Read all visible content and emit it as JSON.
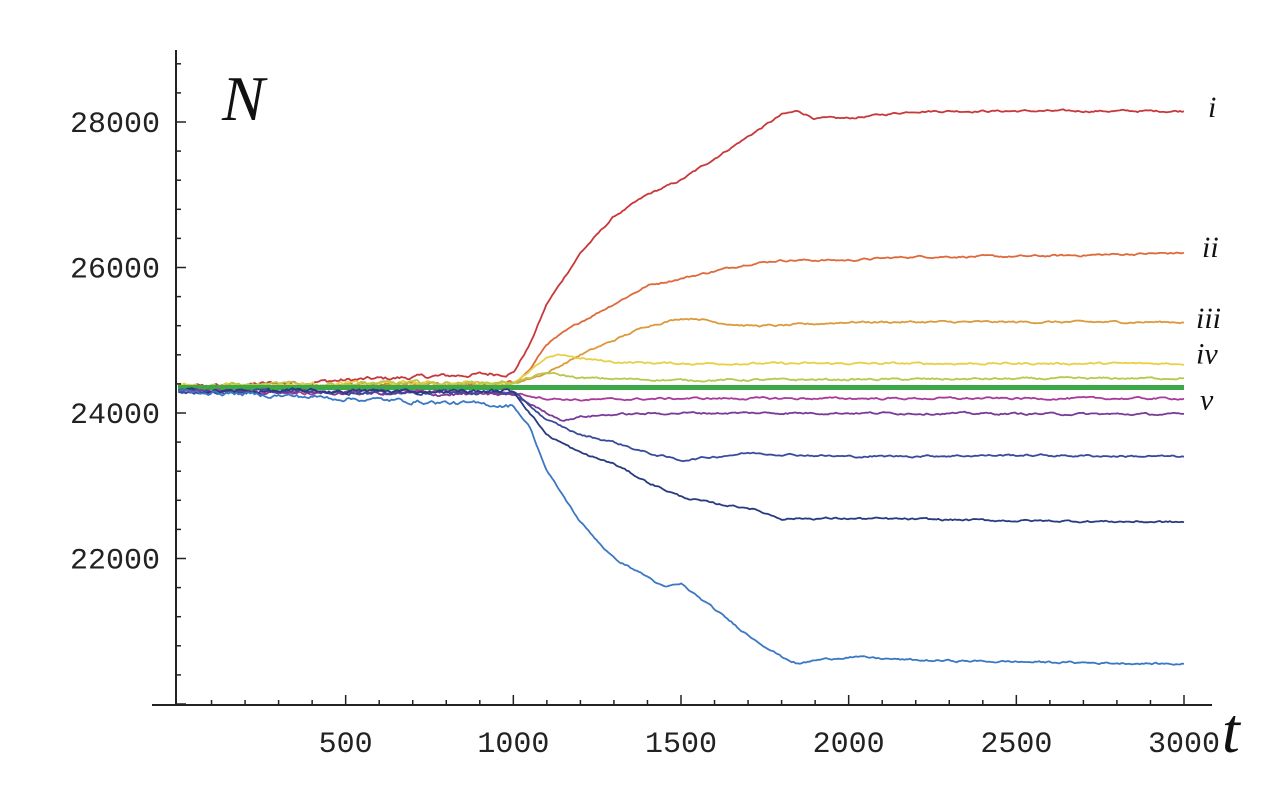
{
  "chart_data": {
    "type": "line",
    "xlabel": "t",
    "ylabel": "N",
    "xlim": [
      0,
      3000
    ],
    "ylim": [
      19500,
      29000
    ],
    "x_ticks": [
      500,
      1000,
      1500,
      2000,
      2500,
      3000
    ],
    "x_tick_labels": [
      "500",
      "1000",
      "1500",
      "2000",
      "2500",
      "3000"
    ],
    "y_ticks": [
      22000,
      24000,
      26000,
      28000
    ],
    "y_tick_labels": [
      "22000",
      "24000",
      "26000",
      "28000"
    ],
    "grid": false,
    "legend": "none",
    "series": [
      {
        "name": "i",
        "color": "#c8383a",
        "x": [
          0,
          1000,
          1050,
          1100,
          1200,
          1300,
          1400,
          1500,
          1600,
          1700,
          1800,
          1850,
          1900,
          2000,
          2200,
          2500,
          3000
        ],
        "y": [
          24350,
          24550,
          24950,
          25500,
          26200,
          26700,
          27000,
          27200,
          27500,
          27800,
          28100,
          28150,
          28050,
          28050,
          28150,
          28150,
          28150
        ]
      },
      {
        "name": "ii",
        "color": "#de6a3c",
        "x": [
          0,
          1000,
          1050,
          1100,
          1200,
          1300,
          1400,
          1500,
          1600,
          1700,
          1800,
          1900,
          2000,
          2200,
          2500,
          3000
        ],
        "y": [
          24350,
          24400,
          24600,
          24950,
          25250,
          25500,
          25750,
          25850,
          25950,
          26050,
          26100,
          26100,
          26100,
          26150,
          26150,
          26200
        ]
      },
      {
        "name": "iii",
        "color": "#dc9a3c",
        "x": [
          0,
          1000,
          1100,
          1200,
          1300,
          1400,
          1500,
          1550,
          1600,
          1700,
          1800,
          2000,
          2200,
          2500,
          3000
        ],
        "y": [
          24350,
          24400,
          24550,
          24800,
          25000,
          25200,
          25300,
          25300,
          25250,
          25200,
          25200,
          25250,
          25250,
          25250,
          25250
        ]
      },
      {
        "name": "iv",
        "color": "#e8d046",
        "x": [
          0,
          1000,
          1100,
          1150,
          1200,
          1300,
          1500,
          2000,
          3000
        ],
        "y": [
          24380,
          24420,
          24750,
          24800,
          24750,
          24700,
          24680,
          24680,
          24680
        ]
      },
      {
        "name": "",
        "color": "#b8c84a",
        "x": [
          0,
          1000,
          1100,
          1200,
          1500,
          2000,
          3000
        ],
        "y": [
          24380,
          24420,
          24550,
          24480,
          24450,
          24460,
          24480
        ]
      },
      {
        "name": "v",
        "color": "#3ca848",
        "x": [
          0,
          3000
        ],
        "y": [
          24350,
          24350
        ]
      },
      {
        "name": "",
        "color": "#a83a9a",
        "x": [
          0,
          1000,
          1100,
          1200,
          1500,
          2000,
          3000
        ],
        "y": [
          24300,
          24280,
          24200,
          24180,
          24200,
          24200,
          24200
        ]
      },
      {
        "name": "",
        "color": "#7a3a98",
        "x": [
          0,
          1000,
          1100,
          1150,
          1200,
          1300,
          1500,
          2000,
          3000
        ],
        "y": [
          24300,
          24250,
          24000,
          23900,
          23950,
          23980,
          24000,
          24000,
          23980
        ]
      },
      {
        "name": "",
        "color": "#3a4a9a",
        "x": [
          0,
          1000,
          1050,
          1100,
          1200,
          1300,
          1400,
          1500,
          1600,
          1700,
          2000,
          2500,
          3000
        ],
        "y": [
          24300,
          24280,
          24100,
          23900,
          23700,
          23600,
          23450,
          23350,
          23400,
          23450,
          23400,
          23420,
          23400
        ]
      },
      {
        "name": "",
        "color": "#283a80",
        "x": [
          0,
          1000,
          1050,
          1100,
          1200,
          1300,
          1400,
          1500,
          1600,
          1700,
          1800,
          2000,
          2500,
          3000
        ],
        "y": [
          24300,
          24300,
          24000,
          23700,
          23450,
          23300,
          23050,
          22850,
          22750,
          22700,
          22550,
          22550,
          22520,
          22500
        ]
      },
      {
        "name": "",
        "color": "#3a78c4",
        "x": [
          0,
          1000,
          1050,
          1100,
          1200,
          1300,
          1400,
          1450,
          1500,
          1600,
          1700,
          1800,
          1850,
          1900,
          2000,
          2200,
          2500,
          3000
        ],
        "y": [
          24300,
          24100,
          23800,
          23200,
          22500,
          22000,
          21750,
          21600,
          21650,
          21300,
          20950,
          20650,
          20550,
          20600,
          20650,
          20600,
          20580,
          20550
        ]
      }
    ]
  },
  "axes": {
    "y_var": "N",
    "x_var": "t"
  }
}
